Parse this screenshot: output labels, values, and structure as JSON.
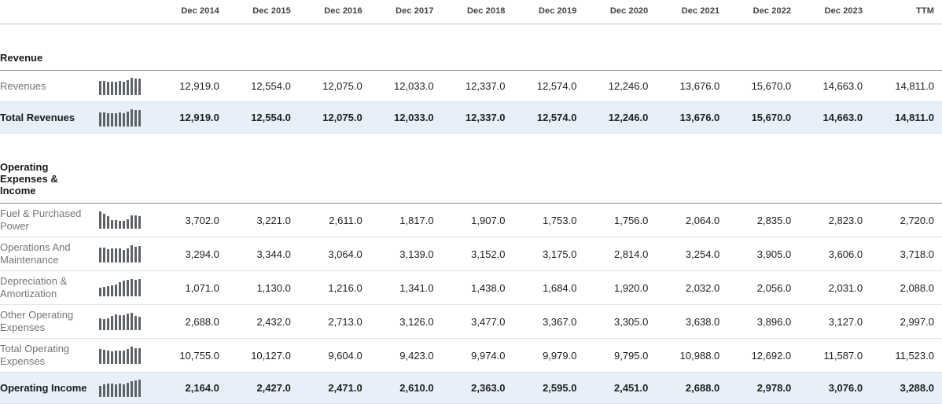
{
  "table": {
    "columns": [
      "Dec 2014",
      "Dec 2015",
      "Dec 2016",
      "Dec 2017",
      "Dec 2018",
      "Dec 2019",
      "Dec 2020",
      "Dec 2021",
      "Dec 2022",
      "Dec 2023",
      "TTM"
    ],
    "sections": [
      {
        "title": "Revenue",
        "rows": [
          {
            "label": "Revenues",
            "bold": false,
            "highlight": false,
            "values": [
              12919.0,
              12554.0,
              12075.0,
              12033.0,
              12337.0,
              12574.0,
              12246.0,
              13676.0,
              15670.0,
              14663.0,
              14811.0
            ]
          },
          {
            "label": "Total Revenues",
            "bold": true,
            "highlight": true,
            "values": [
              12919.0,
              12554.0,
              12075.0,
              12033.0,
              12337.0,
              12574.0,
              12246.0,
              13676.0,
              15670.0,
              14663.0,
              14811.0
            ]
          }
        ]
      },
      {
        "title": "Operating Expenses & Income",
        "rows": [
          {
            "label": "Fuel & Purchased Power",
            "bold": false,
            "highlight": false,
            "values": [
              3702.0,
              3221.0,
              2611.0,
              1817.0,
              1907.0,
              1753.0,
              1756.0,
              2064.0,
              2835.0,
              2823.0,
              2720.0
            ]
          },
          {
            "label": "Operations And Maintenance",
            "bold": false,
            "highlight": false,
            "values": [
              3294.0,
              3344.0,
              3064.0,
              3139.0,
              3152.0,
              3175.0,
              2814.0,
              3254.0,
              3905.0,
              3606.0,
              3718.0
            ]
          },
          {
            "label": "Depreciation & Amortization",
            "bold": false,
            "highlight": false,
            "values": [
              1071.0,
              1130.0,
              1216.0,
              1341.0,
              1438.0,
              1684.0,
              1920.0,
              2032.0,
              2056.0,
              2031.0,
              2088.0
            ]
          },
          {
            "label": "Other Operating Expenses",
            "bold": false,
            "highlight": false,
            "values": [
              2688.0,
              2432.0,
              2713.0,
              3126.0,
              3477.0,
              3367.0,
              3305.0,
              3638.0,
              3896.0,
              3127.0,
              2997.0
            ]
          },
          {
            "label": "Total Operating Expenses",
            "bold": false,
            "highlight": false,
            "values": [
              10755.0,
              10127.0,
              9604.0,
              9423.0,
              9974.0,
              9979.0,
              9795.0,
              10988.0,
              12692.0,
              11587.0,
              11523.0
            ]
          },
          {
            "label": "Operating Income",
            "bold": true,
            "highlight": true,
            "values": [
              2164.0,
              2427.0,
              2471.0,
              2610.0,
              2363.0,
              2595.0,
              2451.0,
              2688.0,
              2978.0,
              3076.0,
              3288.0
            ]
          }
        ]
      }
    ],
    "colors": {
      "highlight_row_background": "#e7f0f8",
      "sparkline_bar": "#5f6368",
      "section_divider": "#8c8c8c",
      "row_divider": "#e3e3e3"
    }
  }
}
